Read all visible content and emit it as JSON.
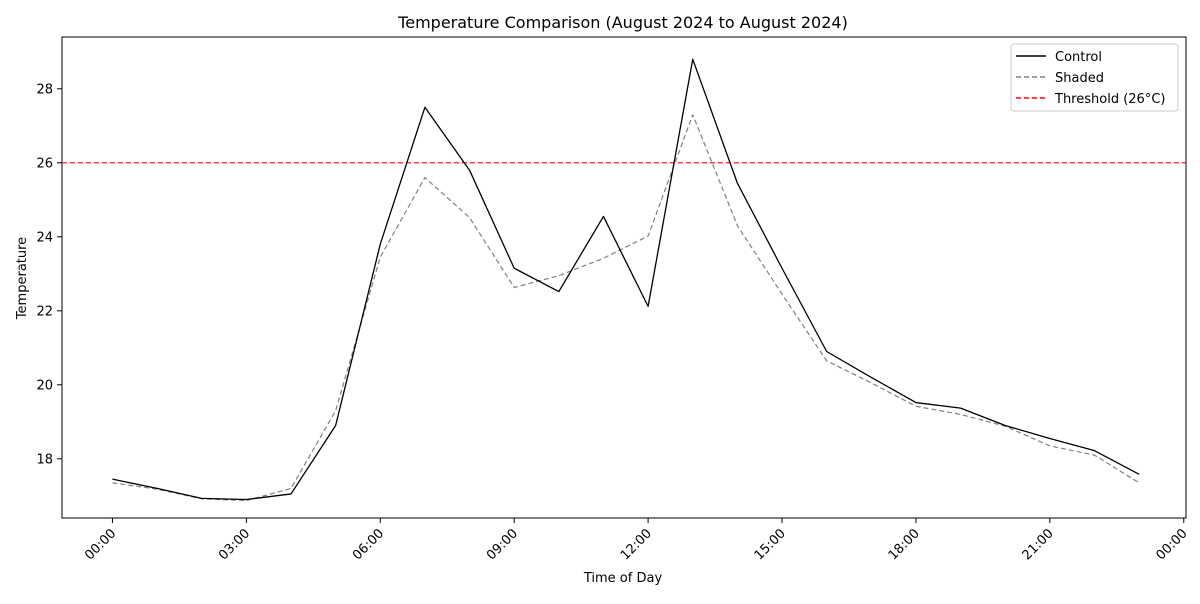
{
  "chart_data": {
    "type": "line",
    "title": "Temperature Comparison (August 2024 to August 2024)",
    "xlabel": "Time of Day",
    "ylabel": "Temperature",
    "x": [
      "00:00",
      "01:00",
      "02:00",
      "03:00",
      "04:00",
      "05:00",
      "06:00",
      "07:00",
      "08:00",
      "09:00",
      "10:00",
      "11:00",
      "12:00",
      "13:00",
      "14:00",
      "15:00",
      "16:00",
      "17:00",
      "18:00",
      "19:00",
      "20:00",
      "21:00",
      "22:00",
      "23:00"
    ],
    "x_ticks": [
      "00:00",
      "03:00",
      "06:00",
      "09:00",
      "12:00",
      "15:00",
      "18:00",
      "21:00",
      "00:00"
    ],
    "y_ticks": [
      18,
      20,
      22,
      24,
      26,
      28
    ],
    "ylim": [
      16.4,
      29.4
    ],
    "xlim_hours": [
      -1.13,
      24.05
    ],
    "grid": false,
    "legend_position": "top-right",
    "series": [
      {
        "name": "Control",
        "color": "#000000",
        "style": "solid",
        "values": [
          17.45,
          17.2,
          16.93,
          16.9,
          17.05,
          18.9,
          23.8,
          27.5,
          25.8,
          23.15,
          22.52,
          24.55,
          22.12,
          28.8,
          25.45,
          23.15,
          20.9,
          20.2,
          19.52,
          19.37,
          18.9,
          18.55,
          18.22,
          17.58
        ]
      },
      {
        "name": "Shaded",
        "color": "#808080",
        "style": "dashed",
        "values": [
          17.35,
          17.18,
          16.92,
          16.87,
          17.2,
          19.3,
          23.45,
          25.6,
          24.52,
          22.63,
          22.95,
          23.42,
          24.02,
          27.3,
          24.3,
          22.45,
          20.65,
          20.05,
          19.42,
          19.2,
          18.88,
          18.35,
          18.1,
          17.35
        ]
      }
    ],
    "threshold": {
      "name": "Threshold (26°C)",
      "value": 26,
      "color": "#ff0000",
      "style": "dashed"
    }
  }
}
